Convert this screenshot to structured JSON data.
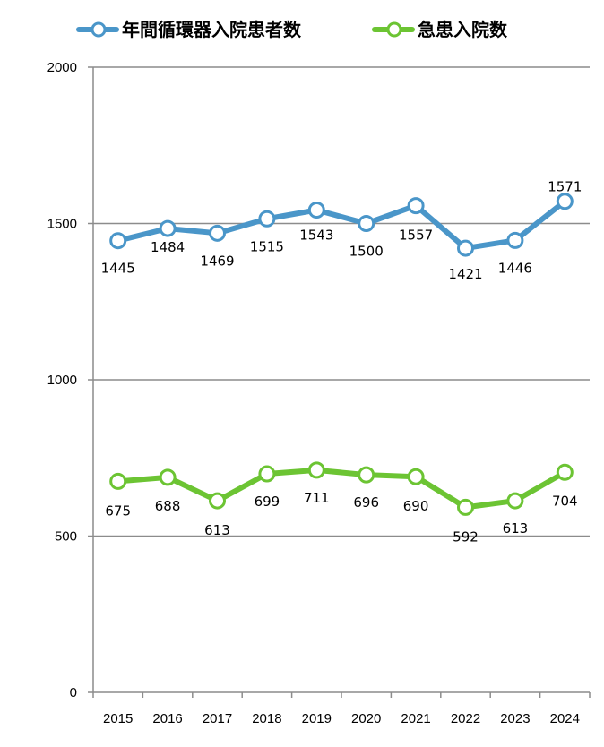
{
  "chart_data": {
    "type": "line",
    "categories": [
      "2015",
      "2016",
      "2017",
      "2018",
      "2019",
      "2020",
      "2021",
      "2022",
      "2023",
      "2024"
    ],
    "series": [
      {
        "name": "年間循環器入院患者数",
        "color": "#4a96c9",
        "values": [
          1445,
          1484,
          1469,
          1515,
          1543,
          1500,
          1557,
          1421,
          1446,
          1571
        ]
      },
      {
        "name": "急患入院数",
        "color": "#6cc433",
        "values": [
          675,
          688,
          613,
          699,
          711,
          696,
          690,
          592,
          613,
          704
        ]
      }
    ],
    "y_ticks": [
      "0",
      "500",
      "1000",
      "1500",
      "2000"
    ],
    "ylim": [
      0,
      2000
    ],
    "grid": true,
    "legend_position": "top"
  }
}
